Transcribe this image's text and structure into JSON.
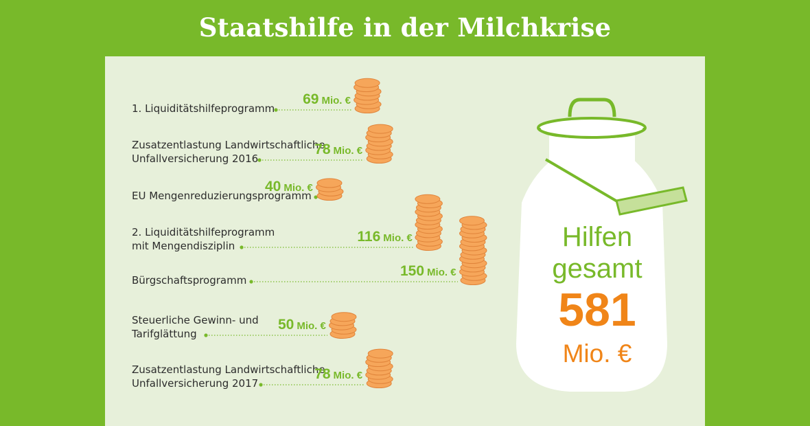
{
  "title": "Staatshilfe in der Milchkrise",
  "chart_data": {
    "type": "bar",
    "title": "Staatshilfe in der Milchkrise",
    "unit": "Mio. €",
    "items": [
      {
        "label_lines": [
          "1. Liquiditätshilfeprogramm"
        ],
        "value": 69,
        "value_text": "69"
      },
      {
        "label_lines": [
          "Zusatzentlastung Landwirtschaftliche",
          "Unfallversicherung 2016"
        ],
        "value": 78,
        "value_text": "78"
      },
      {
        "label_lines": [
          "EU Mengenreduzierungsprogramm"
        ],
        "value": 40,
        "value_text": "40"
      },
      {
        "label_lines": [
          "2. Liquiditätshilfeprogramm",
          "mit Mengendisziplin"
        ],
        "value": 116,
        "value_text": "116"
      },
      {
        "label_lines": [
          "Bürgschaftsprogramm"
        ],
        "value": 150,
        "value_text": "150"
      },
      {
        "label_lines": [
          "Steuerliche Gewinn- und",
          "Tarifglättung"
        ],
        "value": 50,
        "value_text": "50"
      },
      {
        "label_lines": [
          "Zusatzentlastung Landwirtschaftliche",
          "Unfallversicherung 2017"
        ],
        "value": 78,
        "value_text": "78"
      }
    ],
    "total": {
      "line1": "Hilfen",
      "line2": "gesamt",
      "value": "581",
      "unit": "Mio. €"
    }
  },
  "colors": {
    "green": "#78b92a",
    "orange": "#f08518",
    "coin": "#f6a65a",
    "coin_edge": "#e0843a",
    "panel": "#e7f0da"
  }
}
